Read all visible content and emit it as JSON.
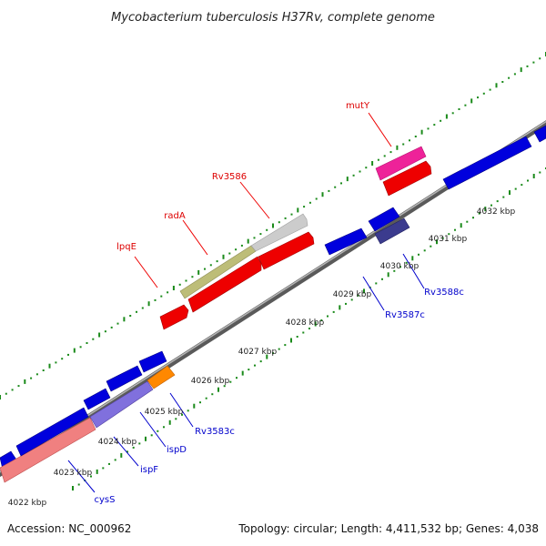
{
  "title": "Mycobacterium tuberculosis H37Rv, complete genome",
  "accession": "Accession: NC_000962",
  "summary": "Topology: circular; Length: 4,411,532 bp; Genes: 4,038",
  "ticks": [
    {
      "id": "t4022",
      "label": "4022 kbp"
    },
    {
      "id": "t4023",
      "label": "4023 kbp"
    },
    {
      "id": "t4024",
      "label": "4024 kbp"
    },
    {
      "id": "t4025",
      "label": "4025 kbp"
    },
    {
      "id": "t4026",
      "label": "4026 kbp"
    },
    {
      "id": "t4027",
      "label": "4027 kbp"
    },
    {
      "id": "t4028",
      "label": "4028 kbp"
    },
    {
      "id": "t4029",
      "label": "4029 kbp"
    },
    {
      "id": "t4030",
      "label": "4030 kbp"
    },
    {
      "id": "t4031",
      "label": "4031 kbp"
    },
    {
      "id": "t4032",
      "label": "4032 kbp"
    }
  ],
  "forward_labels": [
    {
      "id": "lpqE",
      "label": "lpqE",
      "color": "#dd0000"
    },
    {
      "id": "radA",
      "label": "radA",
      "color": "#dd0000"
    },
    {
      "id": "Rv3586",
      "label": "Rv3586",
      "color": "#dd0000"
    },
    {
      "id": "mutY",
      "label": "mutY",
      "color": "#dd0000"
    }
  ],
  "reverse_labels": [
    {
      "id": "cysS",
      "label": "cysS",
      "color": "#0000cc"
    },
    {
      "id": "ispF",
      "label": "ispF",
      "color": "#0000cc"
    },
    {
      "id": "ispD",
      "label": "ispD",
      "color": "#0000cc"
    },
    {
      "id": "Rv3583c",
      "label": "Rv3583c",
      "color": "#0000cc"
    },
    {
      "id": "Rv3587c",
      "label": "Rv3587c",
      "color": "#0000cc"
    },
    {
      "id": "Rv3588c",
      "label": "Rv3588c",
      "color": "#0000cc"
    }
  ],
  "colors": {
    "backbone": "#7a7a7a",
    "forward_gene": "#ee0000",
    "reverse_gene": "#0000dd",
    "gc_dots": "#1a8a1a",
    "lpqE": "#bdbd78",
    "Rv3586": "#cccccc",
    "mutY": "#ee2299",
    "cysS": "#f08080",
    "ispF": "#8070dd",
    "ispD": "#ff8800",
    "Rv3588c": "#3b3b8e"
  }
}
